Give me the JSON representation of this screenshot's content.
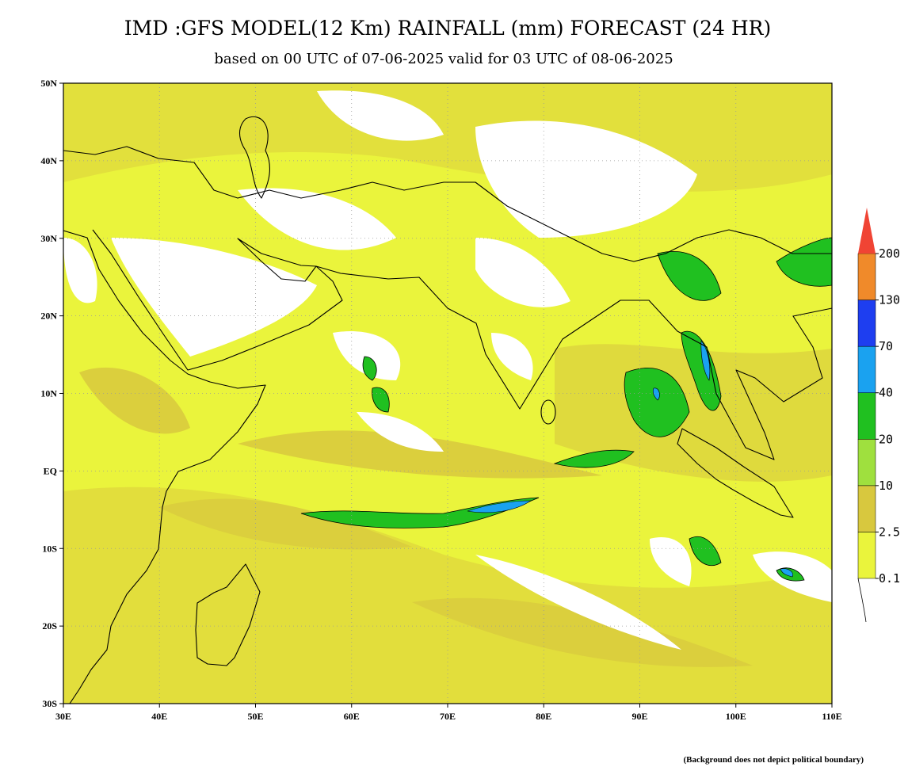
{
  "title": "IMD :GFS MODEL(12 Km) RAINFALL (mm) FORECAST (24 HR)",
  "subtitle": "based on 00 UTC of 07-06-2025 valid for 03 UTC of 08-06-2025",
  "map": {
    "lonlim": [
      30,
      110
    ],
    "latlim": [
      -30,
      50
    ],
    "lon_ticks": [
      {
        "value": 30,
        "label": "30E"
      },
      {
        "value": 40,
        "label": "40E"
      },
      {
        "value": 50,
        "label": "50E"
      },
      {
        "value": 60,
        "label": "60E"
      },
      {
        "value": 70,
        "label": "70E"
      },
      {
        "value": 80,
        "label": "80E"
      },
      {
        "value": 90,
        "label": "90E"
      },
      {
        "value": 100,
        "label": "100E"
      },
      {
        "value": 110,
        "label": "110E"
      }
    ],
    "lat_ticks": [
      {
        "value": 50,
        "label": "50N"
      },
      {
        "value": 40,
        "label": "40N"
      },
      {
        "value": 30,
        "label": "30N"
      },
      {
        "value": 20,
        "label": "20N"
      },
      {
        "value": 10,
        "label": "10N"
      },
      {
        "value": 0,
        "label": "EQ"
      },
      {
        "value": -10,
        "label": "10S"
      },
      {
        "value": -20,
        "label": "20S"
      },
      {
        "value": -30,
        "label": "30S"
      }
    ],
    "grid": true
  },
  "legend": {
    "levels": [
      0.1,
      2.5,
      10,
      20,
      40,
      70,
      130,
      200
    ],
    "colors": [
      "#eaf43c",
      "#d8c83e",
      "#9fe03e",
      "#20c020",
      "#1aa2f0",
      "#1e3ef0",
      "#f08a2a",
      "#f04434"
    ]
  },
  "note": "(Background does not depict political boundary)"
}
